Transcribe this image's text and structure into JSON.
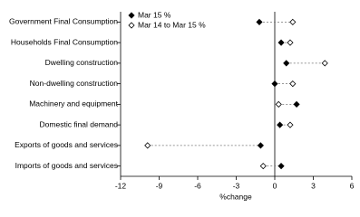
{
  "chart_data": {
    "type": "dot",
    "x_label": "%change",
    "categories": [
      "Government Final Consumption",
      "Households Final Consumption",
      "Dwelling construction",
      "Non-dwelling construction",
      "Machinery and equipment",
      "Domestic final demand",
      "Exports of goods and services",
      "Imports of goods and services"
    ],
    "series": [
      {
        "name": "Mar 15 %",
        "color": "#000000",
        "marker": "filled-diamond",
        "values": [
          -1.2,
          0.5,
          0.9,
          0.0,
          1.7,
          0.4,
          -1.1,
          0.5
        ]
      },
      {
        "name": "Mar 14 to Mar 15 %",
        "color": "#000000",
        "marker": "open-diamond",
        "values": [
          1.4,
          1.2,
          3.9,
          1.4,
          0.3,
          1.2,
          -9.9,
          -0.9
        ]
      }
    ],
    "xlim": [
      -12,
      6
    ],
    "xticks": [
      -12,
      -9,
      -6,
      -3,
      0,
      3,
      6
    ],
    "legend": "top-left"
  }
}
